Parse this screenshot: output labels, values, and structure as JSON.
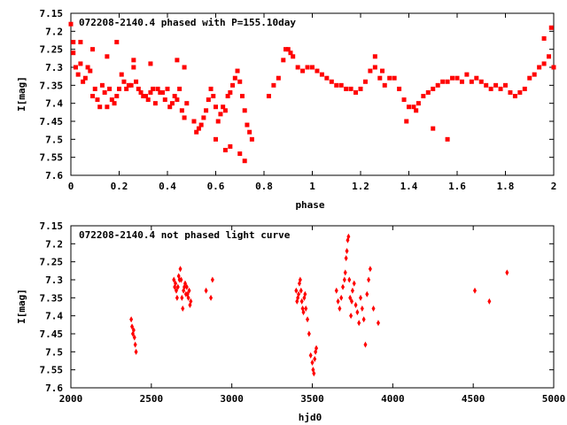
{
  "chart_data": [
    {
      "type": "scatter",
      "title": "072208-2140.4 phased with P=155.10day",
      "xlabel": "phase",
      "ylabel": "I[mag]",
      "xlim": [
        0,
        2
      ],
      "ylim": [
        7.15,
        7.6
      ],
      "y_inverted": true,
      "x_ticks": [
        "0",
        "0.2",
        "0.4",
        "0.6",
        "0.8",
        "1",
        "1.2",
        "1.4",
        "1.6",
        "1.8",
        "2"
      ],
      "y_ticks": [
        "7.15",
        "7.2",
        "7.25",
        "7.3",
        "7.35",
        "7.4",
        "7.45",
        "7.5",
        "7.55",
        "7.6"
      ],
      "grid": false,
      "marker_color": "#ff0000",
      "series": [
        {
          "x": [
            0.0,
            0.01,
            0.02,
            0.03,
            0.04,
            0.05,
            0.06,
            0.07,
            0.08,
            0.09,
            0.1,
            0.11,
            0.12,
            0.13,
            0.14,
            0.15,
            0.16,
            0.17,
            0.18,
            0.19,
            0.2,
            0.21,
            0.22,
            0.23,
            0.24,
            0.25,
            0.26,
            0.27,
            0.28,
            0.29,
            0.3,
            0.31,
            0.32,
            0.33,
            0.34,
            0.35,
            0.36,
            0.37,
            0.38,
            0.39,
            0.4,
            0.41,
            0.42,
            0.43,
            0.44,
            0.45,
            0.46,
            0.47,
            0.48,
            0.51,
            0.52,
            0.53,
            0.54,
            0.55,
            0.56,
            0.57,
            0.58,
            0.59,
            0.6,
            0.61,
            0.62,
            0.63,
            0.64,
            0.65,
            0.66,
            0.67,
            0.68,
            0.69,
            0.7,
            0.71,
            0.72,
            0.73,
            0.74,
            0.75,
            0.82,
            0.84,
            0.86,
            0.88,
            0.9,
            0.92,
            0.94,
            0.96,
            0.98,
            1.0,
            1.02,
            1.04,
            1.06,
            1.08,
            1.1,
            1.12,
            1.14,
            1.16,
            1.18,
            1.2,
            1.22,
            1.24,
            1.26,
            1.28,
            1.3,
            1.32,
            1.34,
            1.36,
            1.38,
            1.4,
            1.42,
            1.44,
            1.46,
            1.48,
            1.5,
            1.52,
            1.54,
            1.56,
            1.58,
            1.6,
            1.62,
            1.64,
            1.66,
            1.68,
            1.7,
            1.72,
            1.74,
            1.76,
            1.78,
            1.8,
            1.82,
            1.84,
            1.86,
            1.88,
            1.9,
            1.92,
            1.94,
            1.96,
            1.98,
            2.0,
            0.01,
            0.04,
            0.09,
            0.15,
            0.19,
            0.26,
            0.33,
            0.44,
            0.47,
            0.6,
            0.64,
            0.66,
            0.7,
            0.72,
            0.89,
            0.91,
            1.26,
            1.29,
            1.39,
            1.43,
            1.5,
            1.56,
            1.96,
            1.99
          ],
          "y": [
            7.18,
            7.26,
            7.3,
            7.32,
            7.29,
            7.34,
            7.33,
            7.3,
            7.31,
            7.38,
            7.36,
            7.39,
            7.41,
            7.35,
            7.37,
            7.41,
            7.36,
            7.39,
            7.4,
            7.38,
            7.36,
            7.32,
            7.34,
            7.36,
            7.35,
            7.35,
            7.3,
            7.34,
            7.36,
            7.37,
            7.38,
            7.38,
            7.39,
            7.37,
            7.36,
            7.4,
            7.36,
            7.37,
            7.37,
            7.39,
            7.36,
            7.41,
            7.4,
            7.38,
            7.39,
            7.36,
            7.42,
            7.44,
            7.4,
            7.45,
            7.48,
            7.47,
            7.46,
            7.44,
            7.42,
            7.39,
            7.36,
            7.38,
            7.41,
            7.45,
            7.43,
            7.41,
            7.42,
            7.38,
            7.37,
            7.35,
            7.33,
            7.31,
            7.34,
            7.38,
            7.42,
            7.46,
            7.48,
            7.5,
            7.38,
            7.35,
            7.33,
            7.28,
            7.25,
            7.27,
            7.3,
            7.31,
            7.3,
            7.3,
            7.31,
            7.32,
            7.33,
            7.34,
            7.35,
            7.35,
            7.36,
            7.36,
            7.37,
            7.36,
            7.34,
            7.31,
            7.3,
            7.33,
            7.35,
            7.33,
            7.33,
            7.36,
            7.39,
            7.41,
            7.41,
            7.4,
            7.38,
            7.37,
            7.36,
            7.35,
            7.34,
            7.34,
            7.33,
            7.33,
            7.34,
            7.32,
            7.34,
            7.33,
            7.34,
            7.35,
            7.36,
            7.35,
            7.36,
            7.35,
            7.37,
            7.38,
            7.37,
            7.36,
            7.33,
            7.32,
            7.3,
            7.29,
            7.27,
            7.3,
            7.23,
            7.23,
            7.25,
            7.27,
            7.23,
            7.28,
            7.29,
            7.28,
            7.3,
            7.5,
            7.53,
            7.52,
            7.54,
            7.56,
            7.25,
            7.26,
            7.27,
            7.31,
            7.45,
            7.42,
            7.47,
            7.5,
            7.22,
            7.19
          ]
        }
      ]
    },
    {
      "type": "scatter",
      "title": "072208-2140.4 not phased light curve",
      "xlabel": "hjd0",
      "ylabel": "I[mag]",
      "xlim": [
        2000,
        5000
      ],
      "ylim": [
        7.15,
        7.6
      ],
      "y_inverted": true,
      "x_ticks": [
        "2000",
        "2500",
        "3000",
        "3500",
        "4000",
        "4500",
        "5000"
      ],
      "y_ticks": [
        "7.15",
        "7.2",
        "7.25",
        "7.3",
        "7.35",
        "7.4",
        "7.45",
        "7.5",
        "7.55",
        "7.6"
      ],
      "grid": false,
      "marker_color": "#ff0000",
      "series": [
        {
          "x": [
            2375,
            2380,
            2385,
            2390,
            2395,
            2400,
            2405,
            2640,
            2645,
            2650,
            2655,
            2660,
            2665,
            2670,
            2675,
            2680,
            2685,
            2690,
            2695,
            2700,
            2705,
            2710,
            2715,
            2720,
            2725,
            2730,
            2735,
            2740,
            2745,
            2840,
            2870,
            2880,
            3400,
            3405,
            3410,
            3415,
            3420,
            3425,
            3430,
            3435,
            3440,
            3445,
            3450,
            3455,
            3460,
            3470,
            3480,
            3490,
            3500,
            3505,
            3510,
            3515,
            3520,
            3525,
            3650,
            3660,
            3670,
            3680,
            3690,
            3700,
            3705,
            3710,
            3715,
            3720,
            3725,
            3730,
            3735,
            3740,
            3745,
            3750,
            3760,
            3770,
            3780,
            3790,
            3800,
            3810,
            3820,
            3830,
            3840,
            3850,
            3860,
            3880,
            3910,
            4510,
            4600,
            4710
          ],
          "y": [
            7.41,
            7.43,
            7.45,
            7.44,
            7.46,
            7.48,
            7.5,
            7.3,
            7.32,
            7.31,
            7.33,
            7.35,
            7.32,
            7.29,
            7.3,
            7.27,
            7.3,
            7.35,
            7.38,
            7.33,
            7.32,
            7.31,
            7.34,
            7.32,
            7.34,
            7.35,
            7.33,
            7.37,
            7.36,
            7.33,
            7.35,
            7.3,
            7.33,
            7.36,
            7.35,
            7.34,
            7.31,
            7.3,
            7.33,
            7.36,
            7.38,
            7.39,
            7.35,
            7.34,
            7.38,
            7.41,
            7.45,
            7.51,
            7.53,
            7.55,
            7.56,
            7.52,
            7.5,
            7.49,
            7.33,
            7.36,
            7.38,
            7.35,
            7.32,
            7.3,
            7.28,
            7.24,
            7.22,
            7.19,
            7.18,
            7.3,
            7.35,
            7.4,
            7.36,
            7.33,
            7.31,
            7.37,
            7.39,
            7.42,
            7.35,
            7.38,
            7.41,
            7.48,
            7.34,
            7.3,
            7.27,
            7.38,
            7.42,
            7.33,
            7.36,
            7.28
          ]
        }
      ]
    }
  ]
}
